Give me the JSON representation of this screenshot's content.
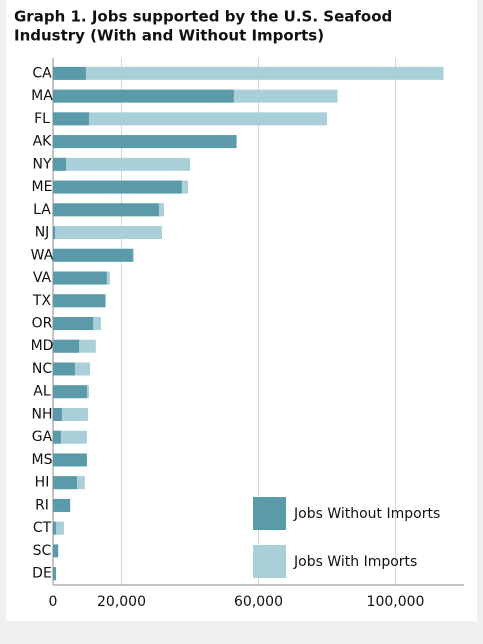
{
  "chart_data": {
    "type": "bar",
    "orientation": "horizontal",
    "overlap": true,
    "title": [
      "Graph 1. Jobs supported by the U.S. Seafood",
      "Industry (With and Without Imports)"
    ],
    "categories": [
      "CA",
      "MA",
      "FL",
      "AK",
      "NY",
      "ME",
      "LA",
      "NJ",
      "WA",
      "VA",
      "TX",
      "OR",
      "MD",
      "NC",
      "AL",
      "NH",
      "GA",
      "MS",
      "HI",
      "RI",
      "CT",
      "SC",
      "DE"
    ],
    "series": [
      {
        "name": "Jobs With Imports",
        "color": "#a9d0d9",
        "values": [
          114000,
          83100,
          80000,
          53600,
          40000,
          39400,
          32400,
          31800,
          23600,
          16600,
          15500,
          14000,
          12500,
          10800,
          10500,
          10200,
          9900,
          9900,
          9300,
          5000,
          3200,
          1500,
          900
        ]
      },
      {
        "name": "Jobs Without Imports",
        "color": "#5b9ba9",
        "values": [
          9600,
          52800,
          10500,
          53600,
          3800,
          37600,
          30900,
          600,
          23300,
          15700,
          15200,
          11700,
          7600,
          6400,
          9900,
          2600,
          2300,
          9900,
          7000,
          5000,
          900,
          1500,
          900
        ]
      }
    ],
    "legend_order": [
      1,
      0
    ],
    "legend": "lower right",
    "xlim": [
      0,
      120000
    ],
    "xticks": [
      0,
      {
        "value": 20000,
        "label": "20,000"
      },
      {
        "value": 60000,
        "label": "60,000"
      },
      {
        "value": 100000,
        "label": "100,000"
      }
    ],
    "grid": true
  }
}
